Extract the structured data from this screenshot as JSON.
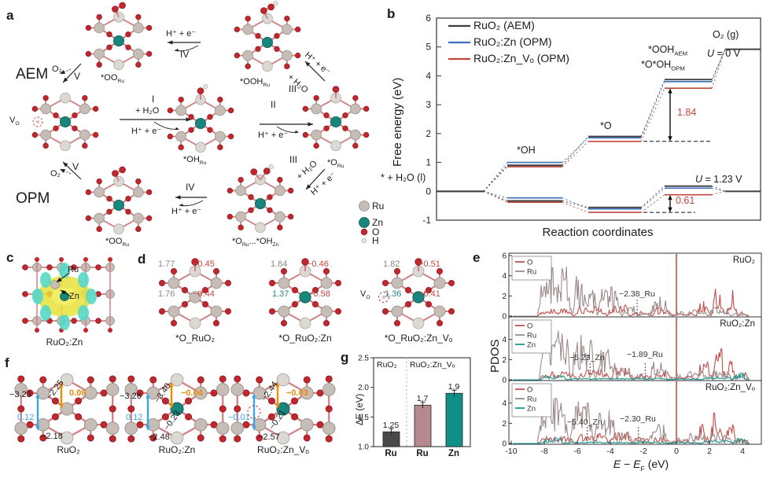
{
  "panels": {
    "a": "a",
    "b": "b",
    "c": "c",
    "d": "d",
    "e": "e",
    "f": "f",
    "g": "g"
  },
  "panel_a": {
    "aem": "AEM",
    "opm": "OPM",
    "vo_main": "V",
    "vo_sub": "O",
    "step_i": "I",
    "step_ii": "II",
    "step_iii": "III",
    "step_iv": "IV",
    "step_v": "V",
    "h2o": "+ H₂O",
    "he": "H⁺ + e⁻",
    "o2": "O₂",
    "oo_main": "*OO",
    "oo_sub": "Ru",
    "ooh_main": "*OOH",
    "ooh_sub": "Ru",
    "oh_main": "*OH",
    "oh_sub": "Ru",
    "o_main": "*O",
    "o_sub": "Ru",
    "oOH_m1": "*O",
    "oOH_s1": "Ru",
    "oOH_mid": "...",
    "oOH_m2": "*OH",
    "oOH_s2": "Zn",
    "legend": [
      {
        "name": "Ru"
      },
      {
        "name": "Zn"
      },
      {
        "name": "O"
      },
      {
        "name": "H"
      }
    ]
  },
  "panel_b": {
    "start": "* + H₂O (l)",
    "oh": "*OH",
    "o": "*O",
    "ooh_aem_main": "*OOH",
    "ooh_aem_sub": "AEM",
    "ooh_opm_main": "*O*OH",
    "ooh_opm_sub": "OPM",
    "o2g": "O₂ (g)",
    "u0_it": "U",
    "u0_rest": " = 0 V",
    "u123_it": "U",
    "u123_rest": " = 1.23 V"
  },
  "panel_c": {
    "ru": "Ru",
    "zn": "Zn",
    "caption": "RuO₂:Zn"
  },
  "panel_d": {
    "s1": {
      "caption": "*O_RuO₂",
      "bond_top": "1.77",
      "chg_top": "−0.45",
      "bond_mid": "1.76",
      "chg_mid": "−0.44"
    },
    "s2": {
      "caption": "*O_RuO₂:Zn",
      "bond_top": "1.84",
      "chg_top": "−0.46",
      "bond_mid": "1.37",
      "chg_mid": "−0.58"
    },
    "s3": {
      "caption": "*O_RuO₂:Zn_Vₒ",
      "bond_top": "1.82",
      "chg_top": "−0.51",
      "vo_main": "V",
      "vo_sub": "O",
      "bond_mid": "1.36",
      "chg_mid": "−0.41"
    }
  },
  "panel_f": {
    "s1": {
      "caption": "RuO₂",
      "left": "−3.23",
      "diag": "−2.25",
      "orange": "0.08",
      "blue": "0.12",
      "bottom": "−2.18"
    },
    "s2": {
      "caption": "RuO₂:Zn",
      "left": "−3.26",
      "diag": "−3.40",
      "orange": "−0.04",
      "blue": "0.12",
      "diag2": "−0.23",
      "bottom": "−2.48"
    },
    "s3": {
      "caption": "RuO₂:Zn_Vₒ",
      "diag": "−2.44",
      "orange": "−0.03",
      "blue": "−0.01",
      "diag2": "−0.21",
      "bottom": "−2.57"
    }
  },
  "chart_data": [
    {
      "id": "b",
      "type": "line",
      "xlabel": "Reaction coordinates",
      "ylabel": "Free energy (eV)",
      "ylim": [
        -1,
        6
      ],
      "yticks": [
        -1,
        0,
        1,
        2,
        3,
        4,
        5,
        6
      ],
      "x_steps": [
        "* + H₂O (l)",
        "*OH",
        "*O",
        "*OOH_AEM / *O*OH_OPM",
        "O₂ (g)"
      ],
      "series": [
        {
          "name": "RuO₂ (AEM)",
          "color": "#3f3f3f",
          "U0": [
            0,
            0.9,
            1.9,
            3.87,
            4.92
          ],
          "U123": [
            0,
            -0.33,
            -0.56,
            0.18,
            0
          ]
        },
        {
          "name": "RuO₂:Zn (OPM)",
          "color": "#3a6fbe",
          "U0": [
            0,
            1.0,
            1.85,
            3.8,
            4.92
          ],
          "U123": [
            0,
            -0.23,
            -0.61,
            0.11,
            0
          ]
        },
        {
          "name": "RuO₂:Zn_Vₒ (OPM)",
          "color": "#c2453f",
          "U0": [
            0,
            0.85,
            1.73,
            3.57,
            4.92
          ],
          "U123": [
            0,
            -0.38,
            -0.73,
            -0.12,
            0
          ]
        }
      ],
      "annotations": [
        {
          "label": "1.84",
          "from": 1.73,
          "to": 3.57
        },
        {
          "label": "0.61",
          "from": -0.73,
          "to": -0.12
        }
      ],
      "potentials": [
        "U = 0 V",
        "U = 1.23 V"
      ]
    },
    {
      "id": "e",
      "type": "pdos",
      "ylabel": "PDOS",
      "xlabel_e1": "E",
      "xlabel_dash": " − ",
      "xlabel_e2": "E",
      "xlabel_sub": "F",
      "xlabel_rest": " (eV)",
      "xlim": [
        -10,
        5.1
      ],
      "xticks": [
        -10,
        -8,
        -6,
        -4,
        -2,
        0,
        2,
        4
      ],
      "ylim": [
        0,
        6
      ],
      "yticks": [
        0,
        2,
        4,
        6
      ],
      "fermi_x": 0,
      "subplots": [
        {
          "title": "RuO₂",
          "annotations": [
            {
              "x": -2.38,
              "label": "−2.38_Ru"
            }
          ],
          "series": [
            {
              "name": "O",
              "color": "#c0504d",
              "seed": 11,
              "segments": [
                [
                  -8.4,
                  -6.2,
                  0.4,
                  0.35
                ],
                [
                  -6.2,
                  -4.2,
                  0.6,
                  0.4
                ],
                [
                  -4.2,
                  -2.8,
                  0.7,
                  0.4
                ],
                [
                  -2.8,
                  -1.5,
                  0.3,
                  0.25
                ],
                [
                  -1.5,
                  -0.2,
                  0.5,
                  0.45
                ],
                [
                  -0.2,
                  1.2,
                  0.15,
                  0.15
                ],
                [
                  1.2,
                  2.1,
                  0.8,
                  0.7
                ],
                [
                  2.1,
                  3.0,
                  1.7,
                  1.2
                ],
                [
                  3.0,
                  3.7,
                  1.5,
                  1.4
                ],
                [
                  3.7,
                  4.4,
                  0.3,
                  0.25
                ]
              ]
            },
            {
              "name": "Ru",
              "color": "#9e8b8b",
              "seed": 7,
              "segments": [
                [
                  -8.4,
                  -6.3,
                  2.6,
                  2.4
                ],
                [
                  -6.3,
                  -4.8,
                  2.2,
                  2.0
                ],
                [
                  -4.8,
                  -3.3,
                  1.7,
                  1.5
                ],
                [
                  -3.3,
                  -2.3,
                  0.6,
                  0.5
                ],
                [
                  -2.3,
                  -1.6,
                  0.2,
                  0.2
                ],
                [
                  -1.6,
                  -0.4,
                  1.0,
                  1.0
                ],
                [
                  -0.4,
                  0.6,
                  0.25,
                  0.2
                ],
                [
                  0.6,
                  1.9,
                  0.45,
                  0.35
                ],
                [
                  1.9,
                  3.3,
                  0.5,
                  0.4
                ],
                [
                  3.3,
                  4.3,
                  0.2,
                  0.15
                ]
              ]
            }
          ]
        },
        {
          "title": "RuO₂:Zn",
          "annotations": [
            {
              "x": -5.23,
              "label": "−5.23_Zn"
            },
            {
              "x": -1.89,
              "label": "−1.89_Ru"
            }
          ],
          "series": [
            {
              "name": "O",
              "color": "#c0504d",
              "seed": 23,
              "segments": [
                [
                  -8.3,
                  -6.0,
                  0.45,
                  0.35
                ],
                [
                  -6.0,
                  -4.0,
                  0.65,
                  0.4
                ],
                [
                  -4.0,
                  -2.6,
                  0.75,
                  0.45
                ],
                [
                  -2.6,
                  -1.4,
                  0.35,
                  0.3
                ],
                [
                  -1.4,
                  -0.2,
                  0.5,
                  0.4
                ],
                [
                  -0.2,
                  1.2,
                  0.2,
                  0.18
                ],
                [
                  1.2,
                  2.2,
                  1.0,
                  0.8
                ],
                [
                  2.2,
                  3.0,
                  1.9,
                  1.5
                ],
                [
                  3.0,
                  3.6,
                  2.2,
                  1.8
                ],
                [
                  3.6,
                  4.4,
                  0.6,
                  0.5
                ]
              ]
            },
            {
              "name": "Ru",
              "color": "#9e8b8b",
              "seed": 19,
              "segments": [
                [
                  -8.3,
                  -6.4,
                  2.8,
                  2.3
                ],
                [
                  -6.4,
                  -4.9,
                  2.4,
                  2.2
                ],
                [
                  -4.9,
                  -3.6,
                  1.8,
                  1.4
                ],
                [
                  -3.6,
                  -2.6,
                  0.8,
                  0.6
                ],
                [
                  -2.6,
                  -1.7,
                  0.3,
                  0.25
                ],
                [
                  -1.7,
                  -0.5,
                  1.1,
                  0.9
                ],
                [
                  -0.5,
                  0.5,
                  0.3,
                  0.25
                ],
                [
                  0.5,
                  1.9,
                  0.5,
                  0.4
                ],
                [
                  1.9,
                  3.4,
                  0.5,
                  0.4
                ],
                [
                  3.4,
                  4.3,
                  0.2,
                  0.15
                ]
              ]
            },
            {
              "name": "Zn",
              "color": "#169a8f",
              "seed": 31,
              "segments": [
                [
                  -8.2,
                  -6.6,
                  0.2,
                  0.25
                ],
                [
                  -6.6,
                  -0.5,
                  0.08,
                  0.08
                ],
                [
                  -0.5,
                  1.5,
                  0.06,
                  0.06
                ],
                [
                  1.5,
                  3.4,
                  0.15,
                  0.15
                ],
                [
                  3.4,
                  4.3,
                  0.4,
                  0.4
                ]
              ]
            }
          ]
        },
        {
          "title": "RuO₂:Zn_Vₒ",
          "annotations": [
            {
              "x": -5.4,
              "label": "−5.40_Zn"
            },
            {
              "x": -2.3,
              "label": "−2.30_Ru"
            }
          ],
          "series": [
            {
              "name": "O",
              "color": "#c0504d",
              "seed": 41,
              "segments": [
                [
                  -8.4,
                  -6.1,
                  0.4,
                  0.3
                ],
                [
                  -6.1,
                  -4.1,
                  0.6,
                  0.4
                ],
                [
                  -4.1,
                  -2.7,
                  0.7,
                  0.4
                ],
                [
                  -2.7,
                  -1.5,
                  0.35,
                  0.3
                ],
                [
                  -1.5,
                  -0.3,
                  0.45,
                  0.4
                ],
                [
                  -0.3,
                  1.0,
                  0.2,
                  0.2
                ],
                [
                  1.0,
                  2.0,
                  1.0,
                  0.9
                ],
                [
                  2.0,
                  2.9,
                  1.8,
                  1.3
                ],
                [
                  2.9,
                  3.6,
                  1.9,
                  1.5
                ],
                [
                  3.6,
                  4.4,
                  0.4,
                  0.3
                ]
              ]
            },
            {
              "name": "Ru",
              "color": "#9e8b8b",
              "seed": 37,
              "segments": [
                [
                  -8.4,
                  -6.5,
                  2.7,
                  2.2
                ],
                [
                  -6.5,
                  -5.0,
                  2.3,
                  2.0
                ],
                [
                  -5.0,
                  -3.6,
                  1.9,
                  1.5
                ],
                [
                  -3.6,
                  -2.6,
                  0.7,
                  0.6
                ],
                [
                  -2.6,
                  -1.8,
                  0.35,
                  0.3
                ],
                [
                  -1.8,
                  -0.5,
                  1.0,
                  0.9
                ],
                [
                  -0.5,
                  0.5,
                  0.3,
                  0.25
                ],
                [
                  0.5,
                  1.9,
                  0.55,
                  0.45
                ],
                [
                  1.9,
                  3.4,
                  0.5,
                  0.4
                ],
                [
                  3.4,
                  4.3,
                  0.2,
                  0.15
                ]
              ]
            },
            {
              "name": "Zn",
              "color": "#169a8f",
              "seed": 43,
              "segments": [
                [
                  -8.2,
                  -6.8,
                  0.25,
                  0.3
                ],
                [
                  -6.8,
                  -0.5,
                  0.08,
                  0.08
                ],
                [
                  -0.5,
                  1.5,
                  0.07,
                  0.07
                ],
                [
                  1.5,
                  3.4,
                  0.18,
                  0.18
                ],
                [
                  3.4,
                  4.3,
                  0.35,
                  0.35
                ]
              ]
            }
          ]
        }
      ]
    },
    {
      "id": "g",
      "type": "bar",
      "ylabel": "ΔE (eV)",
      "ylim": [
        1.0,
        2.5
      ],
      "ytick_labels": [
        "1.0",
        "1.5",
        "2.0",
        "2.5"
      ],
      "groups": [
        "RuO₂",
        "RuO₂:Zn_Vₒ"
      ],
      "categories": [
        "Ru",
        "Ru",
        "Zn"
      ],
      "values": [
        1.25,
        1.7,
        1.9
      ],
      "value_labels": [
        "1.25",
        "1.7",
        "1.9"
      ],
      "colors": [
        "#4a4a4a",
        "#b5898d",
        "#0f8f88"
      ]
    }
  ]
}
